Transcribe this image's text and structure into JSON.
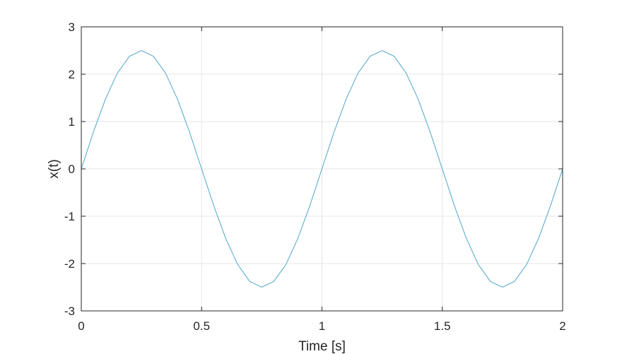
{
  "chart_data": {
    "type": "line",
    "title": "",
    "xlabel": "Time [s]",
    "ylabel": "x(t)",
    "xlim": [
      0,
      2
    ],
    "ylim": [
      -3,
      3
    ],
    "grid": true,
    "line_color": "#4fa6c9",
    "xticks": [
      0,
      0.5,
      1,
      1.5,
      2
    ],
    "xtick_labels": [
      "0",
      "0.5",
      "1",
      "1.5",
      "2"
    ],
    "yticks": [
      -3,
      -2,
      -1,
      0,
      1,
      2,
      3
    ],
    "ytick_labels": [
      "-3",
      "-2",
      "-1",
      "0",
      "1",
      "2",
      "3"
    ],
    "series": [
      {
        "x": [
          0,
          0.05,
          0.1,
          0.15,
          0.2,
          0.25,
          0.3,
          0.35,
          0.4,
          0.45,
          0.5,
          0.55,
          0.6,
          0.65,
          0.7,
          0.75,
          0.8,
          0.85,
          0.9,
          0.95,
          1.0,
          1.05,
          1.1,
          1.15,
          1.2,
          1.25,
          1.3,
          1.35,
          1.4,
          1.45,
          1.5,
          1.55,
          1.6,
          1.65,
          1.7,
          1.75,
          1.8,
          1.85,
          1.9,
          1.95,
          2.0
        ],
        "y": [
          0,
          0.773,
          1.469,
          2.023,
          2.378,
          2.5,
          2.378,
          2.023,
          1.469,
          0.773,
          0,
          -0.773,
          -1.469,
          -2.023,
          -2.378,
          -2.5,
          -2.378,
          -2.023,
          -1.469,
          -0.773,
          0,
          0.773,
          1.469,
          2.023,
          2.378,
          2.5,
          2.378,
          2.023,
          1.469,
          0.773,
          0,
          -0.773,
          -1.469,
          -2.023,
          -2.378,
          -2.5,
          -2.378,
          -2.023,
          -1.469,
          -0.773,
          0
        ]
      }
    ]
  }
}
